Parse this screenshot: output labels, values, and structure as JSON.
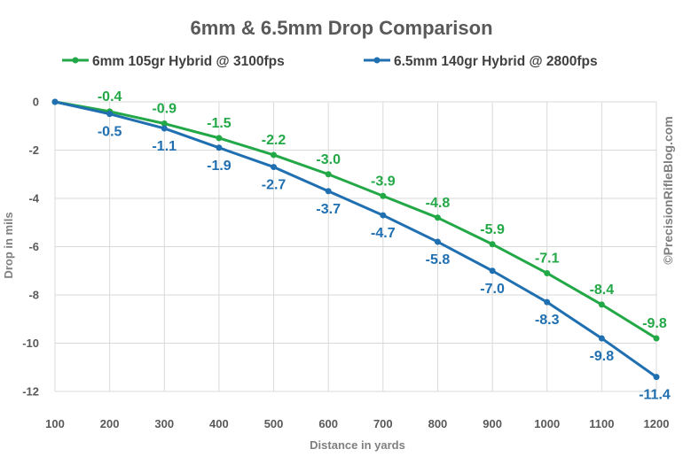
{
  "chart_data": {
    "type": "line",
    "title": "6mm & 6.5mm Drop Comparison",
    "xlabel": "Distance in yards",
    "ylabel": "Drop in mils",
    "categories": [
      "100",
      "200",
      "300",
      "400",
      "500",
      "600",
      "700",
      "800",
      "900",
      "1000",
      "1100",
      "1200"
    ],
    "ylim": [
      -12,
      0
    ],
    "yticks": [
      "0",
      "-2",
      "-4",
      "-6",
      "-8",
      "-10",
      "-12"
    ],
    "grid": "horizontal",
    "legend_position": "top",
    "series": [
      {
        "name": "6mm 105gr Hybrid @ 3100fps",
        "color": "#23a847",
        "values": [
          0,
          -0.4,
          -0.9,
          -1.5,
          -2.2,
          -3.0,
          -3.9,
          -4.8,
          -5.9,
          -7.1,
          -8.4,
          -9.8
        ],
        "labels": [
          "",
          "-0.4",
          "-0.9",
          "-1.5",
          "-2.2",
          "-3.0",
          "-3.9",
          "-4.8",
          "-5.9",
          "-7.1",
          "-8.4",
          "-9.8"
        ]
      },
      {
        "name": "6.5mm 140gr Hybrid @ 2800fps",
        "color": "#1f6fb1",
        "values": [
          0,
          -0.5,
          -1.1,
          -1.9,
          -2.7,
          -3.7,
          -4.7,
          -5.8,
          -7.0,
          -8.3,
          -9.8,
          -11.4
        ],
        "labels": [
          "",
          "-0.5",
          "-1.1",
          "-1.9",
          "-2.7",
          "-3.7",
          "-4.7",
          "-5.8",
          "-7.0",
          "-8.3",
          "-9.8",
          "-11.4"
        ]
      }
    ],
    "watermark": "©PrecisionRifleBlog.com"
  }
}
